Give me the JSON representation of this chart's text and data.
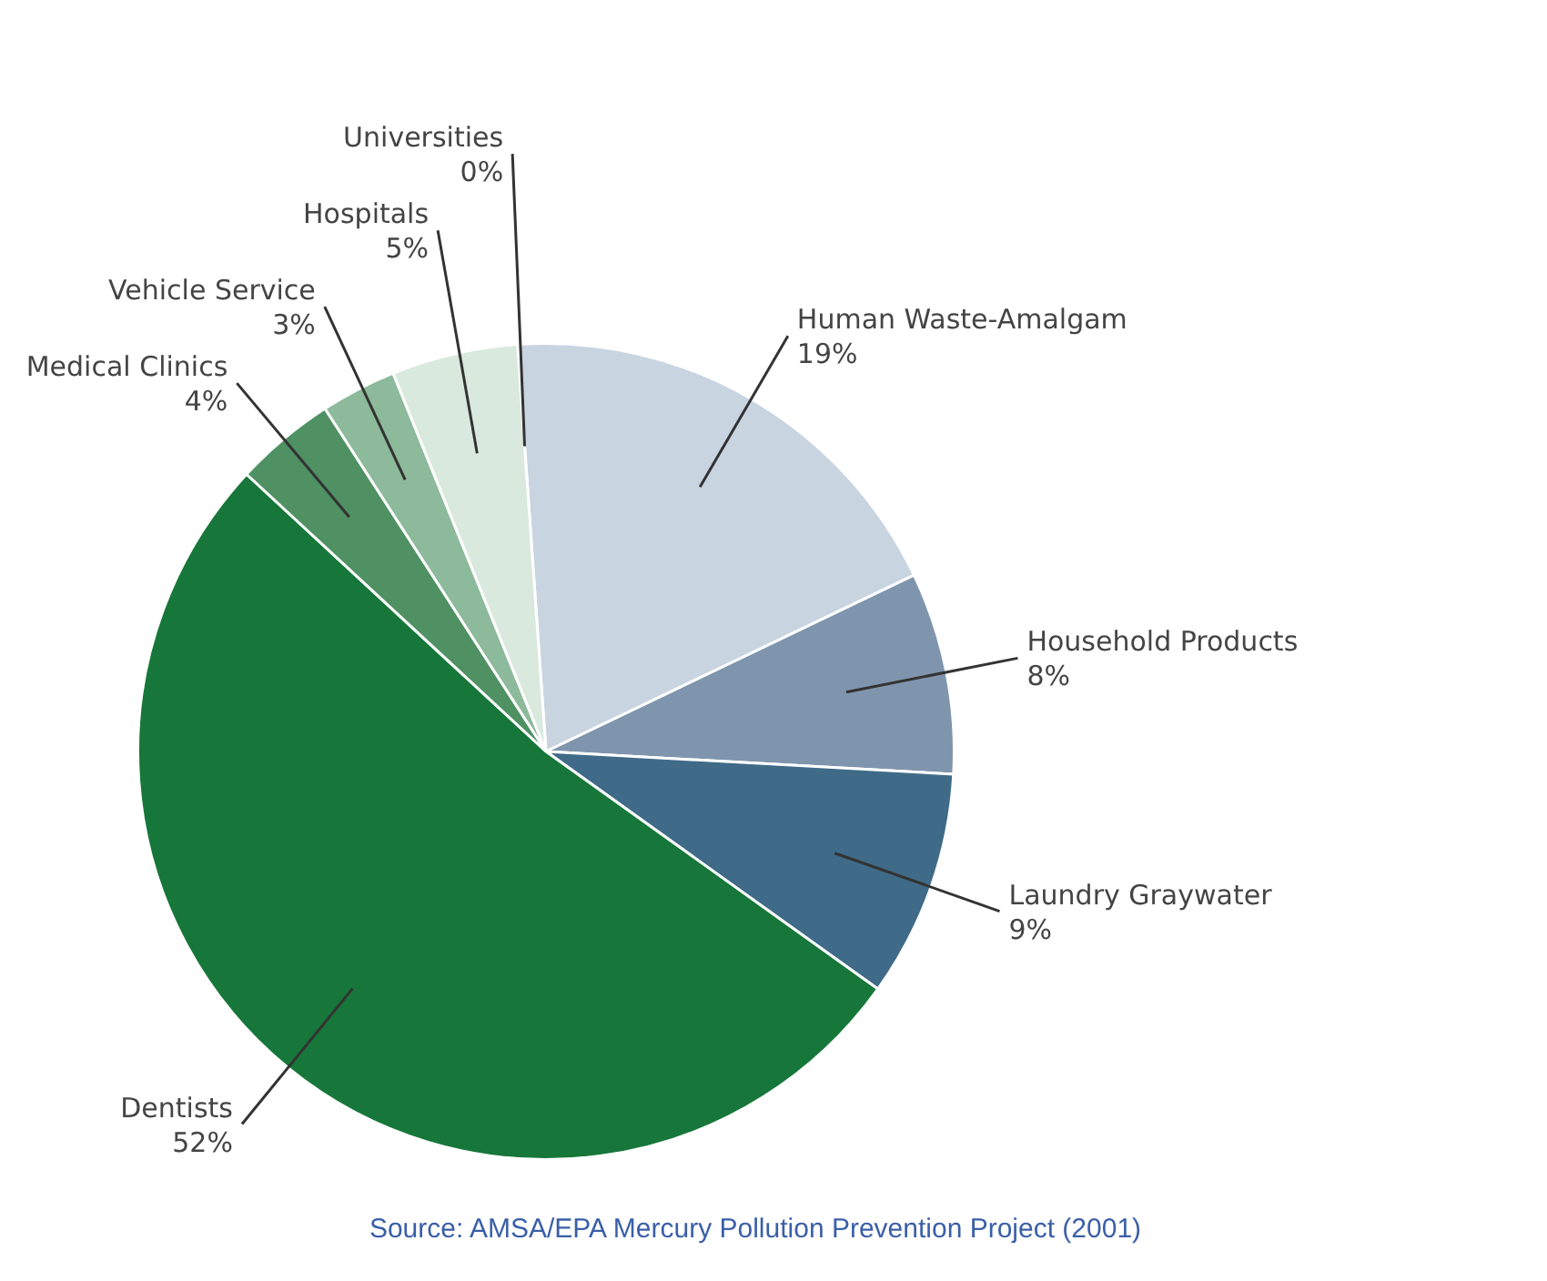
{
  "chart_data": {
    "type": "pie",
    "categories": [
      "Universities",
      "Human Waste-Amalgam",
      "Household Products",
      "Laundry Graywater",
      "Dentists",
      "Medical Clinics",
      "Vehicle Service",
      "Hospitals"
    ],
    "values": [
      0,
      19,
      8,
      9,
      52,
      4,
      3,
      5
    ],
    "value_labels": [
      "0%",
      "19%",
      "8%",
      "9%",
      "52%",
      "4%",
      "3%",
      "5%"
    ],
    "colors": [
      "#2b5d82",
      "#c9d4e1",
      "#7f95ad",
      "#3f6b88",
      "#17773a",
      "#4f9163",
      "#8cba9a",
      "#d9e9dd"
    ],
    "annotations": [
      "Source: AMSA/EPA Mercury Pollution Prevention Project (2001)"
    ]
  }
}
